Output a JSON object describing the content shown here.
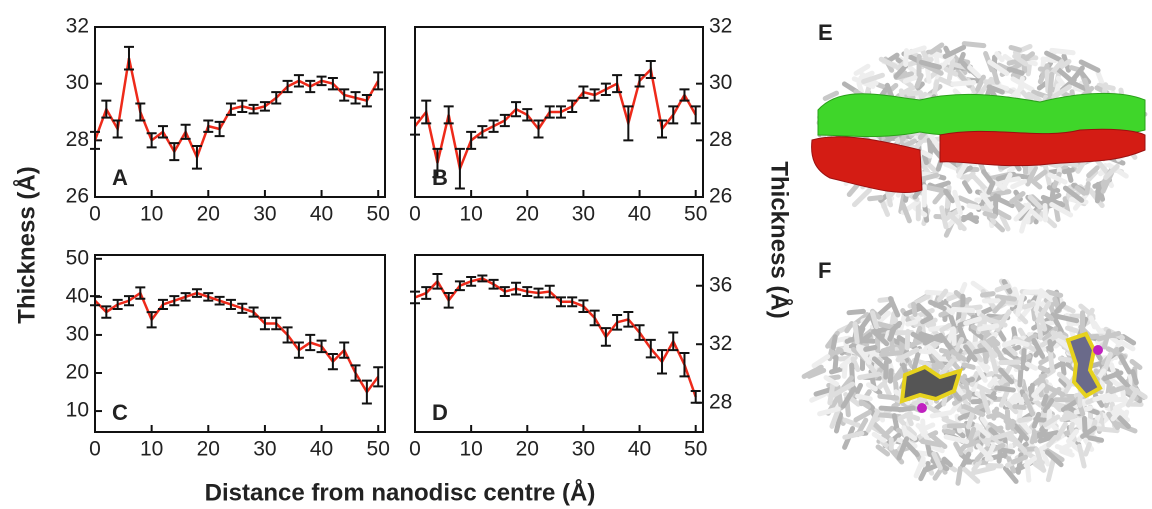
{
  "axis_labels": {
    "y_left": "Thickness (Å)",
    "y_right": "Thickness (Å)",
    "x": "Distance from nanodisc centre (Å)"
  },
  "chart_data": [
    {
      "type": "line",
      "label": "A",
      "y_axis_side": "left",
      "x": [
        0,
        2,
        4,
        6,
        8,
        10,
        12,
        14,
        16,
        18,
        20,
        22,
        24,
        26,
        28,
        30,
        32,
        34,
        36,
        38,
        40,
        42,
        44,
        46,
        48,
        50
      ],
      "series": [
        {
          "color": "#ee2a1a",
          "values": [
            28.0,
            29.1,
            28.4,
            30.9,
            29.0,
            28.0,
            28.3,
            27.6,
            28.3,
            27.4,
            28.5,
            28.4,
            29.1,
            29.2,
            29.1,
            29.2,
            29.5,
            29.9,
            30.1,
            29.9,
            30.1,
            30.0,
            29.6,
            29.5,
            29.4,
            30.1
          ],
          "errors": [
            0.3,
            0.3,
            0.3,
            0.4,
            0.3,
            0.25,
            0.2,
            0.3,
            0.25,
            0.4,
            0.2,
            0.25,
            0.2,
            0.2,
            0.15,
            0.15,
            0.2,
            0.2,
            0.2,
            0.2,
            0.15,
            0.2,
            0.2,
            0.2,
            0.2,
            0.3
          ]
        }
      ],
      "xlim": [
        0,
        51.2
      ],
      "ylim": [
        26,
        32
      ],
      "xticks": [
        0,
        10,
        20,
        30,
        40,
        50
      ],
      "yticks": [
        26,
        28,
        30,
        32
      ]
    },
    {
      "type": "line",
      "label": "B",
      "y_axis_side": "right",
      "x": [
        0,
        2,
        4,
        6,
        8,
        10,
        12,
        14,
        16,
        18,
        20,
        22,
        24,
        26,
        28,
        30,
        32,
        34,
        36,
        38,
        40,
        42,
        44,
        46,
        48,
        50
      ],
      "series": [
        {
          "color": "#ee2a1a",
          "values": [
            28.5,
            29.0,
            27.2,
            28.9,
            27.0,
            28.0,
            28.3,
            28.5,
            28.7,
            29.1,
            28.9,
            28.4,
            29.0,
            29.0,
            29.2,
            29.7,
            29.6,
            29.8,
            30.0,
            28.6,
            30.1,
            30.5,
            28.4,
            28.9,
            29.6,
            28.9
          ],
          "errors": [
            0.3,
            0.4,
            0.5,
            0.3,
            0.7,
            0.3,
            0.2,
            0.2,
            0.2,
            0.25,
            0.2,
            0.3,
            0.2,
            0.2,
            0.2,
            0.2,
            0.2,
            0.2,
            0.3,
            0.6,
            0.2,
            0.3,
            0.3,
            0.3,
            0.2,
            0.3
          ]
        }
      ],
      "xlim": [
        0,
        51.3
      ],
      "ylim": [
        26,
        32
      ],
      "xticks": [
        0,
        10,
        20,
        30,
        40,
        50
      ],
      "yticks": [
        26,
        28,
        30,
        32
      ]
    },
    {
      "type": "line",
      "label": "C",
      "y_axis_side": "left",
      "x": [
        0,
        2,
        4,
        6,
        8,
        10,
        12,
        14,
        16,
        18,
        20,
        22,
        24,
        26,
        28,
        30,
        32,
        34,
        36,
        38,
        40,
        42,
        44,
        46,
        48,
        50
      ],
      "series": [
        {
          "color": "#ee2a1a",
          "values": [
            39,
            36,
            38,
            39,
            41,
            34,
            38,
            39,
            40,
            41,
            40,
            39,
            38,
            37,
            36,
            33,
            33,
            30,
            26,
            28,
            27,
            23,
            26,
            20,
            15,
            19
          ],
          "errors": [
            1.2,
            1.5,
            1.2,
            1.2,
            1.5,
            2,
            1.2,
            1.2,
            1,
            1,
            1,
            1,
            1.2,
            1.2,
            1.2,
            1.5,
            1.5,
            2,
            2,
            2,
            1.5,
            2,
            2,
            2,
            3,
            2.5
          ]
        }
      ],
      "xlim": [
        0,
        51.2
      ],
      "ylim": [
        4.5,
        51
      ],
      "xticks": [
        0,
        10,
        20,
        30,
        40,
        50
      ],
      "yticks": [
        10,
        20,
        30,
        40,
        50
      ]
    },
    {
      "type": "line",
      "label": "D",
      "y_axis_side": "right",
      "x": [
        0,
        2,
        4,
        6,
        8,
        10,
        12,
        14,
        16,
        18,
        20,
        22,
        24,
        26,
        28,
        30,
        32,
        34,
        36,
        38,
        40,
        42,
        44,
        46,
        48,
        50
      ],
      "series": [
        {
          "color": "#ee2a1a",
          "values": [
            35.2,
            35.5,
            36.3,
            35.0,
            36.0,
            36.3,
            36.5,
            36.1,
            35.6,
            35.8,
            35.6,
            35.5,
            35.6,
            34.9,
            34.9,
            34.6,
            33.8,
            32.5,
            33.5,
            33.7,
            32.8,
            31.7,
            30.8,
            32.2,
            30.6,
            28.4
          ],
          "errors": [
            0.4,
            0.4,
            0.5,
            0.5,
            0.3,
            0.3,
            0.2,
            0.3,
            0.3,
            0.4,
            0.3,
            0.3,
            0.4,
            0.3,
            0.3,
            0.4,
            0.5,
            0.6,
            0.5,
            0.5,
            0.5,
            0.6,
            0.8,
            0.6,
            0.8,
            0.4
          ]
        }
      ],
      "xlim": [
        0,
        51.3
      ],
      "ylim": [
        26,
        38.1
      ],
      "xticks": [
        0,
        10,
        20,
        30,
        40,
        50
      ],
      "yticks": [
        28,
        32,
        36
      ]
    }
  ],
  "panels": [
    {
      "label": "E"
    },
    {
      "label": "F"
    }
  ]
}
